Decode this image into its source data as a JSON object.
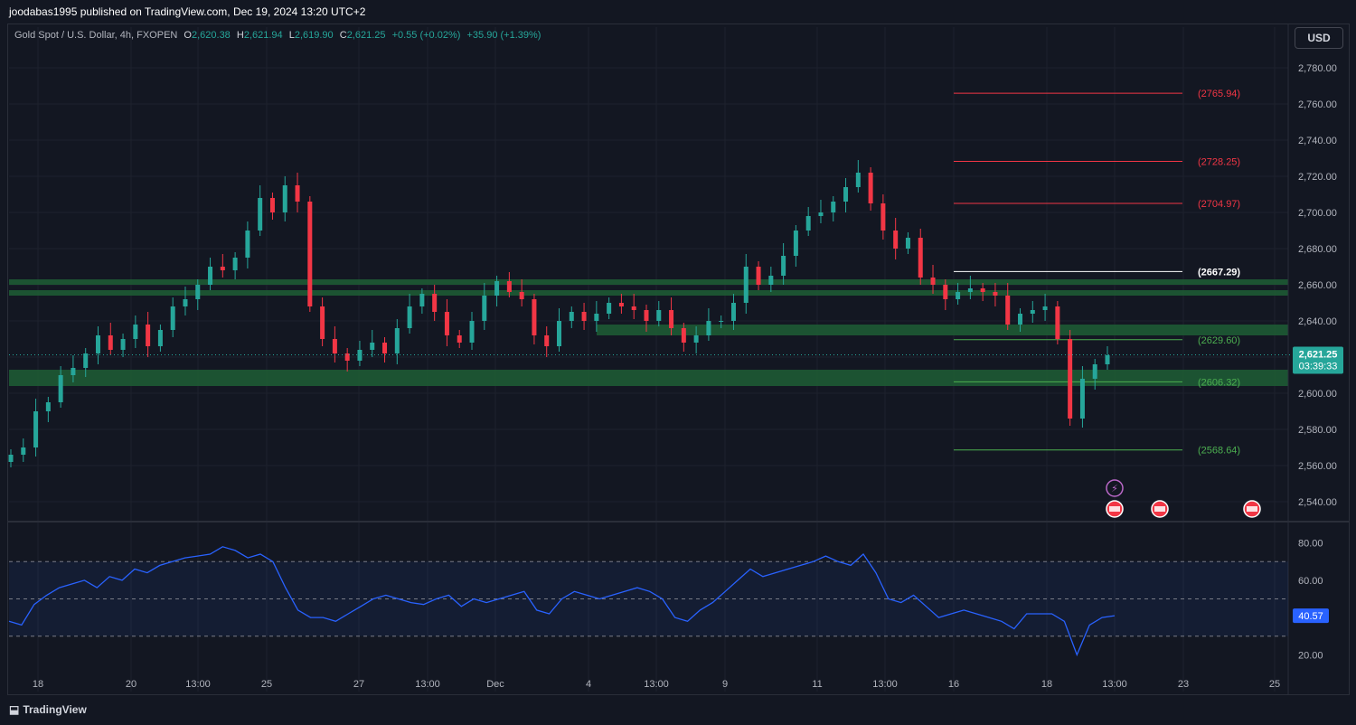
{
  "publisher": "joodabas1995 published on TradingView.com, Dec 19, 2024 13:20 UTC+2",
  "legend": {
    "symbol": "Gold Spot / U.S. Dollar, 4h, FXOPEN",
    "o_label": "O",
    "o": "2,620.38",
    "h_label": "H",
    "h": "2,621.94",
    "l_label": "L",
    "l": "2,619.90",
    "c_label": "C",
    "c": "2,621.25",
    "change": "+0.55 (+0.02%)",
    "change2": "+35.90 (+1.39%)"
  },
  "currency_button": "USD",
  "last_price": "2,621.25",
  "countdown": "03:39:33",
  "rsi_value": "40.57",
  "brand": "TradingView",
  "colors": {
    "bull": "#26a69a",
    "bear": "#f23645",
    "zone": "#1e5a34",
    "rsi": "#2962ff",
    "bg": "#131722"
  },
  "chart_data": {
    "type": "candlestick",
    "price_axis": {
      "min": 2530,
      "max": 2790,
      "ticks": [
        2540,
        2560,
        2580,
        2600,
        2620,
        2640,
        2660,
        2680,
        2700,
        2720,
        2740,
        2760,
        2780
      ],
      "tick_labels": [
        "2,540.00",
        "2,560.00",
        "2,580.00",
        "2,600.00",
        "2,620.00",
        "2,640.00",
        "2,660.00",
        "2,680.00",
        "2,700.00",
        "2,720.00",
        "2,740.00",
        "2,760.00",
        "2,780.00"
      ]
    },
    "x_labels": [
      "18",
      "20",
      "13:00",
      "25",
      "27",
      "13:00",
      "Dec",
      "4",
      "13:00",
      "9",
      "11",
      "13:00",
      "16",
      "18",
      "13:00",
      "23",
      "25"
    ],
    "levels": [
      {
        "label": "(2765.94)",
        "value": 2765.94,
        "color": "#f23645"
      },
      {
        "label": "(2728.25)",
        "value": 2728.25,
        "color": "#f23645"
      },
      {
        "label": "(2704.97)",
        "value": 2704.97,
        "color": "#f23645"
      },
      {
        "label": "(2667.29)",
        "value": 2667.29,
        "color": "#ffffff"
      },
      {
        "label": "(2629.60)",
        "value": 2629.6,
        "color": "#4caf50"
      },
      {
        "label": "(2606.32)",
        "value": 2606.32,
        "color": "#4caf50"
      },
      {
        "label": "(2568.64)",
        "value": 2568.64,
        "color": "#4caf50"
      }
    ],
    "zones": [
      {
        "low": 2660,
        "high": 2663
      },
      {
        "low": 2654,
        "high": 2657
      },
      {
        "low": 2632,
        "high": 2638
      },
      {
        "low": 2604,
        "high": 2613
      }
    ],
    "close_path": [
      2566,
      2570,
      2590,
      2595,
      2610,
      2614,
      2622,
      2632,
      2624,
      2630,
      2638,
      2626,
      2635,
      2648,
      2652,
      2660,
      2670,
      2668,
      2675,
      2690,
      2708,
      2700,
      2715,
      2706,
      2648,
      2630,
      2622,
      2618,
      2624,
      2628,
      2622,
      2636,
      2648,
      2655,
      2645,
      2632,
      2628,
      2640,
      2654,
      2662,
      2656,
      2652,
      2632,
      2626,
      2640,
      2645,
      2640,
      2644,
      2650,
      2648,
      2646,
      2640,
      2646,
      2636,
      2628,
      2632,
      2640,
      2640,
      2650,
      2670,
      2660,
      2665,
      2676,
      2690,
      2698,
      2700,
      2706,
      2714,
      2722,
      2705,
      2690,
      2680,
      2686,
      2664,
      2660,
      2652,
      2656,
      2658,
      2656,
      2654,
      2638,
      2644,
      2646,
      2648,
      2630,
      2586,
      2608,
      2616,
      2621
    ],
    "rsi": {
      "min": 10,
      "max": 90,
      "ticks": [
        20,
        40,
        60,
        80
      ],
      "tick_labels": [
        "20.00",
        "40.00",
        "60.00",
        "80.00"
      ],
      "overbought": 70,
      "oversold": 30,
      "mid": 50,
      "values": [
        38,
        36,
        47,
        52,
        56,
        58,
        60,
        56,
        62,
        60,
        66,
        64,
        68,
        70,
        72,
        73,
        74,
        78,
        76,
        72,
        74,
        70,
        56,
        44,
        40,
        40,
        38,
        42,
        46,
        50,
        52,
        50,
        48,
        47,
        50,
        52,
        46,
        50,
        48,
        50,
        52,
        54,
        44,
        42,
        50,
        54,
        52,
        50,
        52,
        54,
        56,
        54,
        50,
        40,
        38,
        44,
        48,
        54,
        60,
        66,
        62,
        64,
        66,
        68,
        70,
        73,
        70,
        68,
        74,
        64,
        50,
        48,
        52,
        46,
        40,
        42,
        44,
        42,
        40,
        38,
        34,
        42,
        42,
        42,
        38,
        20,
        36,
        40,
        41
      ]
    }
  }
}
